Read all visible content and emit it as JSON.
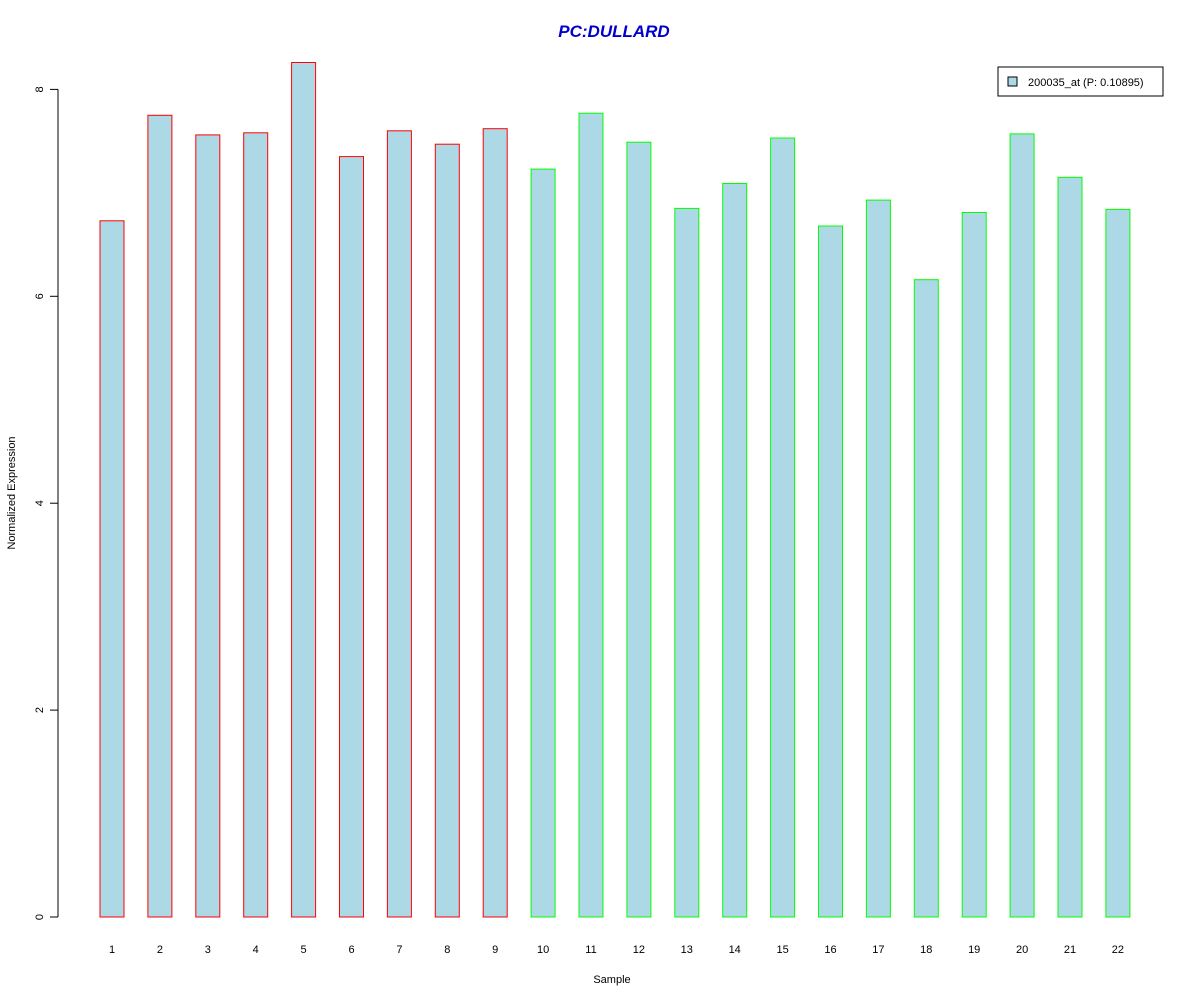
{
  "chart_data": {
    "type": "bar",
    "title": "PC:DULLARD",
    "xlabel": "Sample",
    "ylabel": "Normalized Expression",
    "categories": [
      "1",
      "2",
      "3",
      "4",
      "5",
      "6",
      "7",
      "8",
      "9",
      "10",
      "11",
      "12",
      "13",
      "14",
      "15",
      "16",
      "17",
      "18",
      "19",
      "20",
      "21",
      "22"
    ],
    "series": [
      {
        "name": "200035_at (P: 0.10895)",
        "values": [
          6.73,
          7.75,
          7.56,
          7.58,
          8.26,
          7.35,
          7.6,
          7.47,
          7.62,
          7.23,
          7.77,
          7.49,
          6.85,
          7.09,
          7.53,
          6.68,
          6.93,
          6.16,
          6.81,
          7.57,
          7.15,
          6.84
        ]
      }
    ],
    "bar_border_colors": [
      "#ff0000",
      "#ff0000",
      "#ff0000",
      "#ff0000",
      "#ff0000",
      "#ff0000",
      "#ff0000",
      "#ff0000",
      "#ff0000",
      "#00ff00",
      "#00ff00",
      "#00ff00",
      "#00ff00",
      "#00ff00",
      "#00ff00",
      "#00ff00",
      "#00ff00",
      "#00ff00",
      "#00ff00",
      "#00ff00",
      "#00ff00",
      "#00ff00"
    ],
    "bar_fill_color": "#add8e6",
    "title_color": "#0000cc",
    "ylim": [
      0,
      8.26
    ],
    "yticks": [
      0,
      2,
      4,
      6,
      8
    ],
    "grid": false,
    "legend_position": "top-right"
  }
}
